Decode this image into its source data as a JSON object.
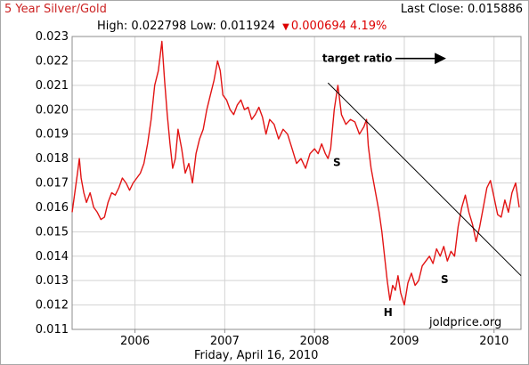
{
  "header": {
    "title": "5 Year Silver/Gold",
    "last_close_label": "Last Close:",
    "last_close_value": "0.015886",
    "high_label": "High:",
    "high_value": "0.022798",
    "low_label": "Low:",
    "low_value": "0.011924",
    "change_value": "0.000694",
    "change_pct": "4.19%",
    "change_direction": "down"
  },
  "footer": {
    "date": "Friday, April 16, 2010"
  },
  "watermark": "joldprice.org",
  "colors": {
    "line": "#e21414",
    "grid": "#d3d3d3",
    "axis": "#8c8c8c",
    "trendline": "#000000",
    "title": "#cc2222"
  },
  "chart_data": {
    "type": "line",
    "title": "5 Year Silver/Gold",
    "xlabel": "",
    "ylabel": "",
    "xlim": [
      2005.3,
      2010.3
    ],
    "ylim": [
      0.011,
      0.023
    ],
    "grid": true,
    "y_ticks": [
      "0.011",
      "0.012",
      "0.013",
      "0.014",
      "0.015",
      "0.016",
      "0.017",
      "0.018",
      "0.019",
      "0.020",
      "0.021",
      "0.022",
      "0.023"
    ],
    "x_ticks": [
      {
        "value": 2006.0,
        "label": "2006"
      },
      {
        "value": 2007.0,
        "label": "2007"
      },
      {
        "value": 2008.0,
        "label": "2008"
      },
      {
        "value": 2009.0,
        "label": "2009"
      },
      {
        "value": 2010.0,
        "label": "2010"
      }
    ],
    "series": [
      {
        "x": [
          2005.3,
          2005.33,
          2005.36,
          2005.38,
          2005.4,
          2005.43,
          2005.46,
          2005.5,
          2005.54,
          2005.58,
          2005.62,
          2005.66,
          2005.7,
          2005.74,
          2005.78,
          2005.82,
          2005.86,
          2005.9,
          2005.94,
          2005.98,
          2006.02,
          2006.06,
          2006.1,
          2006.14,
          2006.18,
          2006.22,
          2006.26,
          2006.3,
          2006.33,
          2006.36,
          2006.39,
          2006.42,
          2006.45,
          2006.48,
          2006.52,
          2006.56,
          2006.6,
          2006.64,
          2006.68,
          2006.72,
          2006.76,
          2006.8,
          2006.84,
          2006.88,
          2006.92,
          2006.95,
          2006.98,
          2007.02,
          2007.06,
          2007.1,
          2007.14,
          2007.18,
          2007.22,
          2007.26,
          2007.3,
          2007.34,
          2007.38,
          2007.42,
          2007.46,
          2007.5,
          2007.55,
          2007.6,
          2007.65,
          2007.7,
          2007.75,
          2007.8,
          2007.85,
          2007.9,
          2007.95,
          2008.0,
          2008.04,
          2008.08,
          2008.12,
          2008.15,
          2008.18,
          2008.22,
          2008.26,
          2008.3,
          2008.35,
          2008.4,
          2008.45,
          2008.5,
          2008.55,
          2008.58,
          2008.6,
          2008.63,
          2008.66,
          2008.69,
          2008.72,
          2008.75,
          2008.78,
          2008.81,
          2008.84,
          2008.87,
          2008.9,
          2008.93,
          2008.96,
          2009.0,
          2009.04,
          2009.08,
          2009.12,
          2009.16,
          2009.2,
          2009.24,
          2009.28,
          2009.32,
          2009.36,
          2009.4,
          2009.44,
          2009.48,
          2009.52,
          2009.56,
          2009.6,
          2009.64,
          2009.68,
          2009.72,
          2009.76,
          2009.8,
          2009.84,
          2009.88,
          2009.92,
          2009.96,
          2010.0,
          2010.04,
          2010.08,
          2010.12,
          2010.16,
          2010.2,
          2010.24,
          2010.28
        ],
        "values": [
          0.0158,
          0.0166,
          0.0174,
          0.018,
          0.0172,
          0.0166,
          0.0162,
          0.0166,
          0.016,
          0.0158,
          0.0155,
          0.0156,
          0.0162,
          0.0166,
          0.0165,
          0.0168,
          0.0172,
          0.017,
          0.0167,
          0.017,
          0.0172,
          0.0174,
          0.0178,
          0.0186,
          0.0196,
          0.021,
          0.0216,
          0.0228,
          0.0212,
          0.0198,
          0.0186,
          0.0176,
          0.018,
          0.0192,
          0.0184,
          0.0174,
          0.0178,
          0.017,
          0.0182,
          0.0188,
          0.0192,
          0.02,
          0.0206,
          0.0212,
          0.022,
          0.0216,
          0.0206,
          0.0204,
          0.02,
          0.0198,
          0.0202,
          0.0204,
          0.02,
          0.0201,
          0.0196,
          0.0198,
          0.0201,
          0.0197,
          0.019,
          0.0196,
          0.0194,
          0.0188,
          0.0192,
          0.019,
          0.0184,
          0.0178,
          0.018,
          0.0176,
          0.0182,
          0.0184,
          0.0182,
          0.0186,
          0.0182,
          0.018,
          0.0184,
          0.02,
          0.021,
          0.0198,
          0.0194,
          0.0196,
          0.0195,
          0.019,
          0.0193,
          0.0196,
          0.0185,
          0.0176,
          0.017,
          0.0164,
          0.0158,
          0.015,
          0.014,
          0.013,
          0.0122,
          0.0128,
          0.0126,
          0.0132,
          0.0125,
          0.012,
          0.0129,
          0.0133,
          0.0128,
          0.013,
          0.0136,
          0.0138,
          0.014,
          0.0137,
          0.0143,
          0.014,
          0.0144,
          0.0138,
          0.0142,
          0.014,
          0.0152,
          0.016,
          0.0165,
          0.0158,
          0.0153,
          0.0146,
          0.0152,
          0.016,
          0.0168,
          0.0171,
          0.0164,
          0.0157,
          0.0156,
          0.0163,
          0.0158,
          0.0166,
          0.017,
          0.016
        ]
      }
    ],
    "annotations": [
      {
        "type": "trendline",
        "x": [
          2008.15,
          2010.3
        ],
        "y": [
          0.0211,
          0.0132
        ]
      },
      {
        "type": "arrow",
        "label": "target ratio",
        "x": [
          2008.9,
          2009.45
        ],
        "y": [
          0.0221,
          0.0221
        ]
      },
      {
        "type": "text",
        "label": "S",
        "x": 2008.25,
        "y": 0.0177
      },
      {
        "type": "text",
        "label": "H",
        "x": 2008.82,
        "y": 0.01155
      },
      {
        "type": "text",
        "label": "S",
        "x": 2009.45,
        "y": 0.0129
      }
    ]
  }
}
